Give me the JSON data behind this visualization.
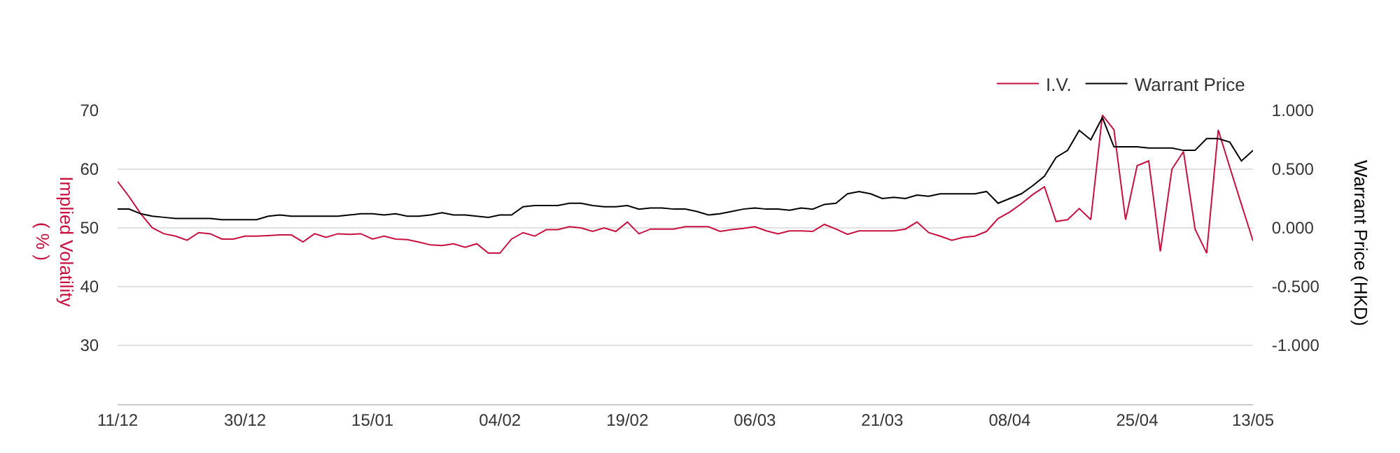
{
  "chart_data": {
    "type": "line",
    "ylabel": "Implied Volatility ( % )",
    "y2label": "Warrant Price (HKD)",
    "categories": [
      "11/12",
      null,
      null,
      null,
      null,
      null,
      null,
      null,
      null,
      null,
      null,
      "30/12",
      null,
      null,
      null,
      null,
      null,
      null,
      null,
      null,
      null,
      null,
      "15/01",
      null,
      null,
      null,
      null,
      null,
      null,
      null,
      null,
      null,
      null,
      "04/02",
      null,
      null,
      null,
      null,
      null,
      null,
      null,
      null,
      null,
      null,
      "19/02",
      null,
      null,
      null,
      null,
      null,
      null,
      null,
      null,
      null,
      null,
      "06/03",
      null,
      null,
      null,
      null,
      null,
      null,
      null,
      null,
      null,
      null,
      "21/03",
      null,
      null,
      null,
      null,
      null,
      null,
      null,
      null,
      null,
      null,
      "08/04",
      null,
      null,
      null,
      null,
      null,
      null,
      null,
      null,
      null,
      null,
      "25/04",
      null,
      null,
      null,
      null,
      null,
      null,
      null,
      null,
      null,
      "13/05"
    ],
    "series": [
      {
        "name": "I.V.",
        "color": "#c8103e",
        "values": [
          57.9,
          55.3,
          52.4,
          50.0,
          49.0,
          48.6,
          47.9,
          49.2,
          49.0,
          48.1,
          48.1,
          48.6,
          48.6,
          48.7,
          48.8,
          48.8,
          47.6,
          49.0,
          48.4,
          49.0,
          48.9,
          49.0,
          48.1,
          48.6,
          48.1,
          48.0,
          47.6,
          47.1,
          47.0,
          47.3,
          46.7,
          47.3,
          45.7,
          45.7,
          48.1,
          49.2,
          48.6,
          49.7,
          49.7,
          50.2,
          50.0,
          49.4,
          50.0,
          49.4,
          51.0,
          49.0,
          49.8,
          49.8,
          49.8,
          50.2,
          50.2,
          50.2,
          49.4,
          49.7,
          49.9,
          50.2,
          49.5,
          49.0,
          49.5,
          49.5,
          49.4,
          50.6,
          49.8,
          48.9,
          49.5,
          49.5,
          49.5,
          49.5,
          49.8,
          51.0,
          49.2,
          48.6,
          47.9,
          48.4,
          48.6,
          49.4,
          51.6,
          52.7,
          54.1,
          55.7,
          57.0,
          51.1,
          51.4,
          53.3,
          51.4,
          69.2,
          66.7,
          51.4,
          60.6,
          61.4,
          46.0,
          60.0,
          63.0,
          49.8,
          45.7,
          66.7,
          60.3,
          54.0,
          47.8
        ]
      },
      {
        "name": "Warrant Price",
        "color": "#000000",
        "axis": "y2",
        "values": [
          0.16,
          0.16,
          0.12,
          0.1,
          0.09,
          0.08,
          0.08,
          0.08,
          0.08,
          0.07,
          0.07,
          0.07,
          0.07,
          0.1,
          0.11,
          0.1,
          0.1,
          0.1,
          0.1,
          0.1,
          0.11,
          0.12,
          0.12,
          0.11,
          0.12,
          0.1,
          0.1,
          0.11,
          0.13,
          0.11,
          0.11,
          0.1,
          0.09,
          0.11,
          0.11,
          0.18,
          0.19,
          0.19,
          0.19,
          0.21,
          0.21,
          0.19,
          0.18,
          0.18,
          0.19,
          0.16,
          0.17,
          0.17,
          0.16,
          0.16,
          0.14,
          0.11,
          0.12,
          0.14,
          0.16,
          0.17,
          0.16,
          0.16,
          0.15,
          0.17,
          0.16,
          0.2,
          0.21,
          0.29,
          0.31,
          0.29,
          0.25,
          0.26,
          0.25,
          0.28,
          0.27,
          0.29,
          0.29,
          0.29,
          0.29,
          0.31,
          0.21,
          0.25,
          0.29,
          0.36,
          0.44,
          0.6,
          0.66,
          0.83,
          0.75,
          0.94,
          0.69,
          0.69,
          0.69,
          0.68,
          0.68,
          0.68,
          0.66,
          0.66,
          0.76,
          0.76,
          0.73,
          0.57,
          0.66
        ]
      }
    ],
    "ylim": [
      20,
      70
    ],
    "yticks": [
      30,
      40,
      50,
      60,
      70
    ],
    "y2lim": [
      -1.5,
      1.0
    ],
    "y2ticks": [
      {
        "value": -1,
        "label": "-1.000"
      },
      {
        "value": -0.5,
        "label": "-0.500"
      },
      {
        "value": 0,
        "label": "0.000"
      },
      {
        "value": 0.5,
        "label": "0.500"
      },
      {
        "value": 1,
        "label": "1.000"
      }
    ],
    "grid": "y",
    "legend": "top right",
    "marker": "none",
    "line_style": "solid"
  }
}
